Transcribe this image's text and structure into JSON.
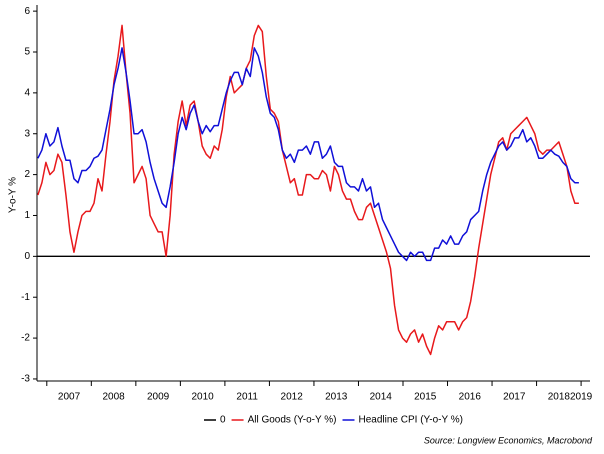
{
  "chart_data": {
    "type": "line",
    "y_label": "Y-o-Y %",
    "source": "Source: Longview Economics, Macrobond",
    "x": [
      2006.8,
      2006.89,
      2006.98,
      2007.07,
      2007.16,
      2007.25,
      2007.34,
      2007.43,
      2007.52,
      2007.61,
      2007.7,
      2007.79,
      2007.88,
      2007.97,
      2008.06,
      2008.15,
      2008.24,
      2008.33,
      2008.42,
      2008.51,
      2008.6,
      2008.69,
      2008.78,
      2008.87,
      2008.96,
      2009.05,
      2009.14,
      2009.23,
      2009.32,
      2009.41,
      2009.5,
      2009.59,
      2009.68,
      2009.77,
      2009.86,
      2009.95,
      2010.04,
      2010.13,
      2010.22,
      2010.31,
      2010.4,
      2010.49,
      2010.58,
      2010.67,
      2010.76,
      2010.85,
      2010.94,
      2011.03,
      2011.12,
      2011.21,
      2011.3,
      2011.39,
      2011.48,
      2011.57,
      2011.66,
      2011.75,
      2011.84,
      2011.93,
      2012.02,
      2012.11,
      2012.2,
      2012.29,
      2012.38,
      2012.47,
      2012.56,
      2012.65,
      2012.74,
      2012.83,
      2012.92,
      2013.01,
      2013.1,
      2013.19,
      2013.28,
      2013.37,
      2013.46,
      2013.55,
      2013.64,
      2013.73,
      2013.82,
      2013.91,
      2014.0,
      2014.09,
      2014.18,
      2014.27,
      2014.36,
      2014.45,
      2014.54,
      2014.63,
      2014.72,
      2014.81,
      2014.9,
      2014.99,
      2015.08,
      2015.17,
      2015.26,
      2015.35,
      2015.44,
      2015.53,
      2015.62,
      2015.71,
      2015.8,
      2015.89,
      2015.98,
      2016.07,
      2016.16,
      2016.25,
      2016.34,
      2016.43,
      2016.52,
      2016.61,
      2016.7,
      2016.79,
      2016.88,
      2016.97,
      2017.06,
      2017.15,
      2017.24,
      2017.33,
      2017.42,
      2017.51,
      2017.6,
      2017.69,
      2017.78,
      2017.87,
      2017.96,
      2018.05,
      2018.14,
      2018.23,
      2018.32,
      2018.41,
      2018.5,
      2018.59,
      2018.68,
      2018.77,
      2018.86,
      2018.95
    ],
    "series": [
      {
        "name": "0",
        "color": "#000000",
        "x": [
          2006.78,
          2019.2
        ],
        "values": [
          0,
          0
        ]
      },
      {
        "name": "All Goods (Y-o-Y %)",
        "color": "#e8191c",
        "values": [
          1.5,
          1.8,
          2.3,
          2.0,
          2.1,
          2.5,
          2.3,
          1.5,
          0.6,
          0.1,
          0.6,
          1.0,
          1.1,
          1.1,
          1.3,
          1.9,
          1.6,
          2.5,
          3.3,
          4.3,
          4.9,
          5.65,
          4.5,
          3.5,
          1.8,
          2.0,
          2.2,
          1.9,
          1.0,
          0.8,
          0.6,
          0.6,
          0.0,
          1.0,
          2.5,
          3.3,
          3.8,
          3.2,
          3.7,
          3.8,
          3.3,
          2.7,
          2.5,
          2.4,
          2.7,
          2.6,
          3.1,
          3.9,
          4.4,
          4.0,
          4.1,
          4.2,
          4.6,
          4.8,
          5.4,
          5.65,
          5.5,
          4.4,
          3.6,
          3.5,
          3.3,
          2.6,
          2.2,
          1.8,
          1.9,
          1.5,
          1.5,
          2.0,
          2.0,
          1.9,
          1.9,
          2.1,
          2.0,
          1.6,
          2.2,
          2.0,
          1.6,
          1.4,
          1.4,
          1.1,
          0.9,
          0.9,
          1.2,
          1.3,
          1.0,
          0.7,
          0.4,
          0.1,
          -0.3,
          -1.2,
          -1.8,
          -2.0,
          -2.1,
          -1.9,
          -1.8,
          -2.1,
          -1.9,
          -2.2,
          -2.4,
          -2.0,
          -1.7,
          -1.8,
          -1.6,
          -1.6,
          -1.6,
          -1.8,
          -1.6,
          -1.5,
          -1.1,
          -0.5,
          0.2,
          0.8,
          1.4,
          2.0,
          2.4,
          2.8,
          2.9,
          2.6,
          3.0,
          3.1,
          3.2,
          3.3,
          3.4,
          3.2,
          3.0,
          2.6,
          2.5,
          2.6,
          2.6,
          2.7,
          2.8,
          2.5,
          2.2,
          1.6,
          1.3,
          1.3
        ]
      },
      {
        "name": "Headline CPI (Y-o-Y %)",
        "color": "#1010d8",
        "values": [
          2.4,
          2.6,
          3.0,
          2.7,
          2.8,
          3.15,
          2.7,
          2.35,
          2.35,
          1.9,
          1.8,
          2.1,
          2.1,
          2.2,
          2.4,
          2.45,
          2.6,
          3.1,
          3.6,
          4.2,
          4.6,
          5.1,
          4.5,
          3.8,
          3.0,
          3.0,
          3.1,
          2.8,
          2.3,
          1.9,
          1.6,
          1.3,
          1.2,
          1.7,
          2.3,
          3.0,
          3.4,
          3.1,
          3.5,
          3.7,
          3.3,
          3.0,
          3.2,
          3.05,
          3.2,
          3.2,
          3.6,
          4.0,
          4.3,
          4.5,
          4.5,
          4.2,
          4.6,
          4.4,
          5.1,
          4.9,
          4.5,
          3.9,
          3.5,
          3.4,
          3.1,
          2.6,
          2.4,
          2.5,
          2.3,
          2.6,
          2.6,
          2.7,
          2.5,
          2.8,
          2.8,
          2.4,
          2.5,
          2.7,
          2.3,
          2.2,
          2.2,
          1.8,
          1.7,
          1.7,
          1.6,
          1.9,
          1.6,
          1.7,
          1.2,
          1.3,
          0.9,
          0.7,
          0.5,
          0.3,
          0.1,
          0.0,
          -0.1,
          0.1,
          0.0,
          0.1,
          0.1,
          -0.1,
          -0.1,
          0.2,
          0.2,
          0.4,
          0.3,
          0.5,
          0.3,
          0.3,
          0.5,
          0.6,
          0.9,
          1.0,
          1.1,
          1.6,
          2.0,
          2.3,
          2.5,
          2.7,
          2.8,
          2.6,
          2.7,
          2.9,
          2.9,
          3.1,
          2.8,
          2.9,
          2.7,
          2.4,
          2.4,
          2.5,
          2.6,
          2.5,
          2.45,
          2.3,
          2.2,
          1.9,
          1.8,
          1.8
        ]
      }
    ],
    "xlim": [
      2006.78,
      2019.2
    ],
    "xticks": [
      2007,
      2008,
      2009,
      2010,
      2011,
      2012,
      2013,
      2014,
      2015,
      2016,
      2017,
      2018,
      2019
    ],
    "ylim": [
      -3.05,
      6.15
    ],
    "yticks": [
      -3,
      -2,
      -1,
      0,
      1,
      2,
      3,
      4,
      5,
      6
    ],
    "grid": false,
    "legend": "bottom"
  }
}
